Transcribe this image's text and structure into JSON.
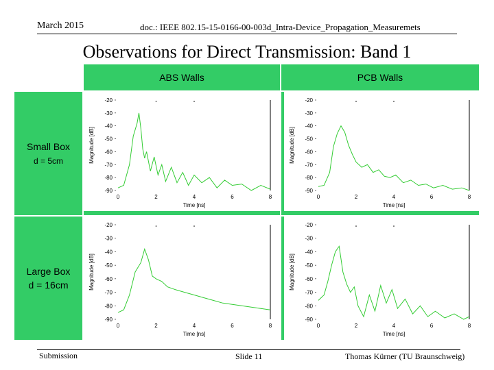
{
  "header": {
    "date": "March 2015",
    "doc": "doc.: IEEE 802.15-15-0166-00-003d_Intra-Device_Propagation_Measuremets"
  },
  "title": "Observations for Direct Transmission: Band 1",
  "table": {
    "columns": [
      "ABS Walls",
      "PCB Walls"
    ],
    "rows": [
      {
        "label": "Small Box",
        "sublabel": "d = 5cm"
      },
      {
        "label": "Large Box",
        "sublabel": "d = 16cm"
      }
    ]
  },
  "chart_data": [
    {
      "type": "line",
      "xlabel": "Time [ns]",
      "ylabel": "Magnitude [dB]",
      "xlim": [
        0,
        8
      ],
      "ylim": [
        -90,
        -20
      ],
      "xticks": [
        "0",
        "2",
        "4",
        "6",
        "8"
      ],
      "yticks": [
        "-20",
        "-30",
        "-40",
        "-50",
        "-60",
        "-70",
        "-80",
        "-90"
      ],
      "color": "#33cc33",
      "x": [
        0,
        0.3,
        0.6,
        0.8,
        1.0,
        1.1,
        1.2,
        1.3,
        1.4,
        1.5,
        1.7,
        1.9,
        2.1,
        2.3,
        2.5,
        2.8,
        3.1,
        3.4,
        3.7,
        4.0,
        4.4,
        4.8,
        5.2,
        5.6,
        6.0,
        6.5,
        7.0,
        7.5,
        8.0
      ],
      "y": [
        -88,
        -86,
        -70,
        -48,
        -38,
        -30,
        -42,
        -58,
        -65,
        -60,
        -75,
        -64,
        -78,
        -70,
        -83,
        -72,
        -84,
        -76,
        -86,
        -78,
        -84,
        -80,
        -88,
        -82,
        -86,
        -85,
        -90,
        -86,
        -89
      ]
    },
    {
      "type": "line",
      "xlabel": "Time [ns]",
      "ylabel": "Magnitude [dB]",
      "xlim": [
        0,
        8
      ],
      "ylim": [
        -90,
        -20
      ],
      "xticks": [
        "0",
        "2",
        "4",
        "6",
        "8"
      ],
      "yticks": [
        "-20",
        "-30",
        "-40",
        "-50",
        "-60",
        "-70",
        "-80",
        "-90"
      ],
      "color": "#33cc33",
      "x": [
        0,
        0.3,
        0.6,
        0.8,
        1.0,
        1.2,
        1.4,
        1.6,
        1.8,
        2.0,
        2.3,
        2.6,
        2.9,
        3.2,
        3.5,
        3.8,
        4.1,
        4.5,
        4.9,
        5.3,
        5.7,
        6.1,
        6.6,
        7.1,
        7.6,
        8.0
      ],
      "y": [
        -87,
        -86,
        -76,
        -56,
        -46,
        -40,
        -45,
        -55,
        -62,
        -68,
        -72,
        -70,
        -76,
        -74,
        -79,
        -80,
        -78,
        -84,
        -82,
        -86,
        -85,
        -88,
        -86,
        -89,
        -88,
        -90
      ]
    },
    {
      "type": "line",
      "xlabel": "Time [ns]",
      "ylabel": "Magnitude [dB]",
      "xlim": [
        0,
        8
      ],
      "ylim": [
        -90,
        -20
      ],
      "xticks": [
        "0",
        "2",
        "4",
        "6",
        "8"
      ],
      "yticks": [
        "-20",
        "-30",
        "-40",
        "-50",
        "-60",
        "-70",
        "-80",
        "-90"
      ],
      "color": "#33cc33",
      "x": [
        0,
        0.3,
        0.6,
        0.9,
        1.2,
        1.4,
        1.6,
        1.8,
        2.0,
        2.3,
        2.6,
        3.0,
        3.5,
        4.0,
        4.5,
        5.0,
        5.5,
        6.0,
        6.5,
        7.0,
        7.5,
        8.0
      ],
      "y": [
        -85,
        -83,
        -72,
        -55,
        -48,
        -38,
        -46,
        -58,
        -60,
        -62,
        -66,
        -68,
        -70,
        -72,
        -74,
        -76,
        -78,
        -79,
        -80,
        -81,
        -82,
        -83
      ]
    },
    {
      "type": "line",
      "xlabel": "Time [ns]",
      "ylabel": "Magnitude [dB]",
      "xlim": [
        0,
        8
      ],
      "ylim": [
        -90,
        -20
      ],
      "xticks": [
        "0",
        "2",
        "4",
        "6",
        "8"
      ],
      "yticks": [
        "-20",
        "-30",
        "-40",
        "-50",
        "-60",
        "-70",
        "-80",
        "-90"
      ],
      "color": "#33cc33",
      "x": [
        0,
        0.3,
        0.5,
        0.7,
        0.9,
        1.1,
        1.3,
        1.5,
        1.7,
        1.9,
        2.1,
        2.4,
        2.7,
        3.0,
        3.3,
        3.6,
        3.9,
        4.2,
        4.6,
        5.0,
        5.4,
        5.8,
        6.2,
        6.7,
        7.2,
        7.7,
        8.0
      ],
      "y": [
        -76,
        -72,
        -62,
        -50,
        -40,
        -36,
        -55,
        -64,
        -70,
        -66,
        -80,
        -88,
        -72,
        -84,
        -65,
        -78,
        -68,
        -82,
        -75,
        -86,
        -80,
        -88,
        -84,
        -89,
        -86,
        -90,
        -88
      ]
    }
  ],
  "footer": {
    "left": "Submission",
    "center": "Slide 11",
    "right": "Thomas Kürner (TU Braunschweig)"
  }
}
